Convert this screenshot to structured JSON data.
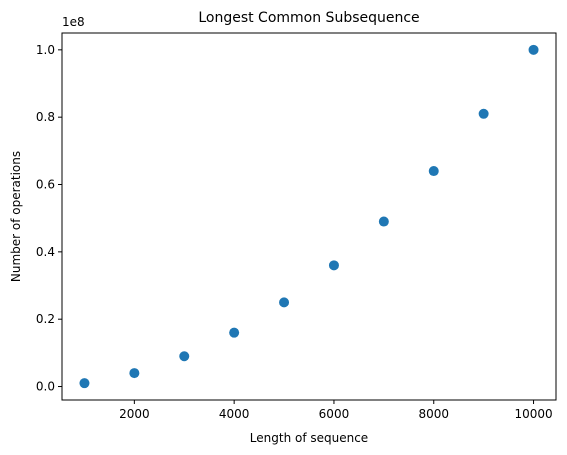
{
  "chart_data": {
    "type": "scatter",
    "title": "Longest Common Subsequence",
    "xlabel": "Length of sequence",
    "ylabel": "Number of operations",
    "y_offset_label": "1e8",
    "x": [
      1000,
      2000,
      3000,
      4000,
      5000,
      6000,
      7000,
      8000,
      9000,
      10000
    ],
    "y": [
      1000000,
      4000000,
      9000000,
      16000000,
      25000000,
      36000000,
      49000000,
      64000000,
      81000000,
      100000000
    ],
    "xlim": [
      550,
      10450
    ],
    "ylim": [
      -4000000,
      105000000
    ],
    "x_ticks": [
      2000,
      4000,
      6000,
      8000,
      10000
    ],
    "x_tick_labels": [
      "2000",
      "4000",
      "6000",
      "8000",
      "10000"
    ],
    "y_ticks": [
      0,
      20000000,
      40000000,
      60000000,
      80000000,
      100000000
    ],
    "y_tick_labels": [
      "0.0",
      "0.2",
      "0.4",
      "0.6",
      "0.8",
      "1.0"
    ],
    "grid": false,
    "marker_color": "#1f77b4"
  }
}
